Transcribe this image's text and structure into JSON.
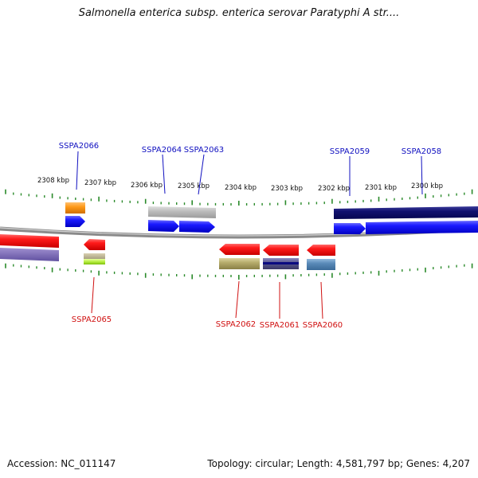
{
  "title": "Salmonella enterica subsp. enterica serovar Paratyphi A str....",
  "footer": {
    "accession": "Accession: NC_011147",
    "topology": "Topology: circular; Length: 4,581,797 bp; Genes: 4,207"
  },
  "colors": {
    "plus_label": "#1010c0",
    "minus_label": "#d01010",
    "tick": "#2a8a2a",
    "backbone": "#8a8a8a"
  },
  "axis": {
    "ticks": [
      "2308 kbp",
      "2307 kbp",
      "2306 kbp",
      "2305 kbp",
      "2304 kbp",
      "2303 kbp",
      "2302 kbp",
      "2301 kbp",
      "2300 kbp"
    ]
  },
  "genes_plus": [
    {
      "label": "SSPA2066"
    },
    {
      "label": "SSPA2064"
    },
    {
      "label": "SSPA2063"
    },
    {
      "label": "SSPA2059"
    },
    {
      "label": "SSPA2058"
    }
  ],
  "genes_minus": [
    {
      "label": "SSPA2065"
    },
    {
      "label": "SSPA2062"
    },
    {
      "label": "SSPA2061"
    },
    {
      "label": "SSPA2060"
    }
  ]
}
